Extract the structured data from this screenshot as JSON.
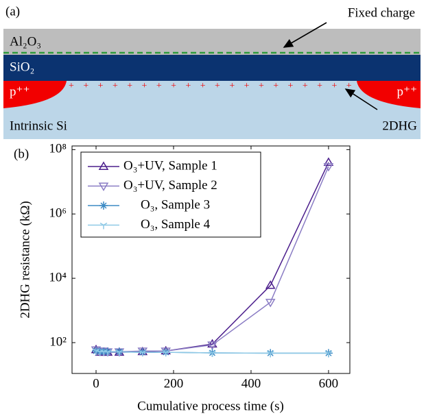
{
  "diagram": {
    "label": "(a)",
    "fixed_charge": "Fixed charge",
    "top_layer": "Al₂O₃",
    "oxide_layer": "SiO₂",
    "contact_left": "p⁺⁺",
    "contact_right": "p⁺⁺",
    "substrate": "Intrinsic Si",
    "channel": "2DHG",
    "charge_symbol": "+"
  },
  "chart_data": {
    "type": "line",
    "panel_label": "(b)",
    "x_label": "Cumulative process time (s)",
    "y_label": "2DHG resistance (kΩ)",
    "x": [
      0,
      10,
      20,
      30,
      60,
      120,
      180,
      300,
      450,
      600
    ],
    "series": [
      {
        "name": "O₃+UV, Sample 1",
        "color": "#4b1e8c",
        "marker": "triangle-up",
        "values": [
          60,
          50,
          50,
          50,
          50,
          52,
          55,
          90,
          6000,
          40000000
        ]
      },
      {
        "name": "O₃+UV, Sample 2",
        "color": "#8a7cc4",
        "marker": "triangle-down",
        "values": [
          60,
          55,
          55,
          52,
          52,
          55,
          55,
          85,
          1800,
          30000000
        ]
      },
      {
        "name": "O₃, Sample 3",
        "color": "#3b8ac4",
        "marker": "star",
        "values": [
          55,
          52,
          52,
          52,
          52,
          50,
          50,
          48,
          47,
          47
        ]
      },
      {
        "name": "O₃, Sample 4",
        "color": "#8ec9e6",
        "marker": "y",
        "values": [
          55,
          52,
          52,
          51,
          51,
          50,
          50,
          48,
          47,
          47
        ]
      }
    ],
    "xlim": [
      -62,
      655
    ],
    "ylim": [
      11,
      130000000
    ],
    "xticks": [
      0,
      200,
      400,
      600
    ],
    "yticks": [
      {
        "value": 100,
        "label": "10²"
      },
      {
        "value": 10000,
        "label": "10⁴"
      },
      {
        "value": 1000000,
        "label": "10⁶"
      },
      {
        "value": 100000000,
        "label": "10⁸"
      }
    ],
    "log_y": true,
    "legend": "top-left"
  }
}
